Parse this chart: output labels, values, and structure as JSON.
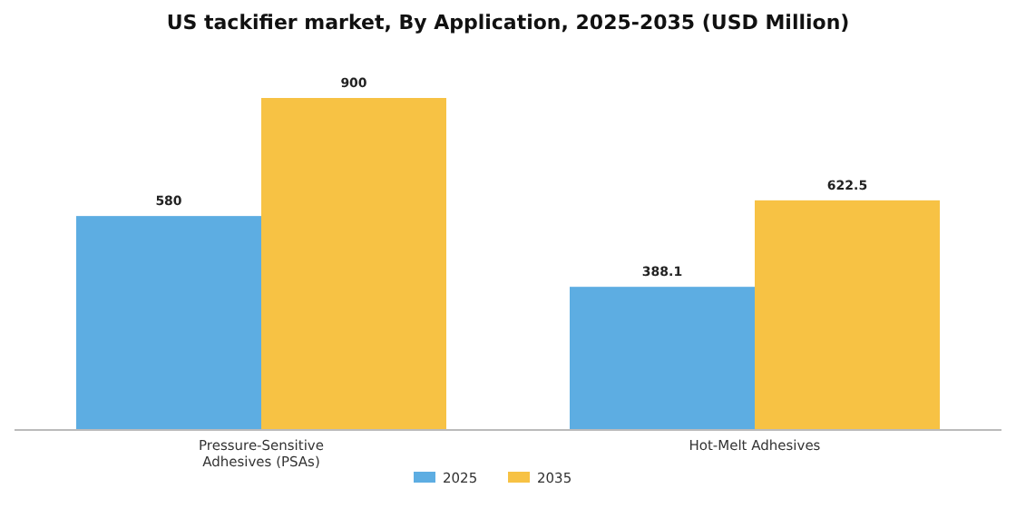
{
  "chart_data": {
    "type": "bar",
    "title": "US tackifier market, By Application, 2025-2035 (USD Million)",
    "categories": [
      "Pressure-Sensitive Adhesives (PSAs)",
      "Hot-Melt Adhesives"
    ],
    "series": [
      {
        "name": "2025",
        "color": "#5dade2",
        "values": [
          580,
          388.1
        ]
      },
      {
        "name": "2035",
        "color": "#f7c244",
        "values": [
          900,
          622.5
        ]
      }
    ],
    "data_labels": true,
    "legend": "bottom",
    "grid": false
  }
}
